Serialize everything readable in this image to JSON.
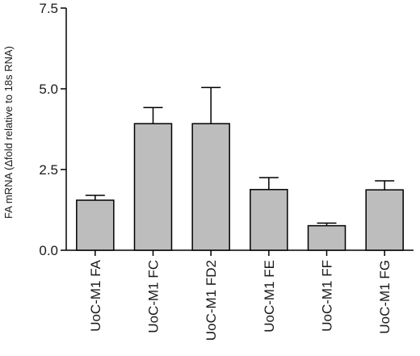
{
  "chart_data": {
    "type": "bar",
    "title": "",
    "xlabel": "",
    "ylabel": "FA mRNA (Δfold relative to 18s RNA)",
    "ylim": [
      0,
      7.5
    ],
    "yticks": [
      0.0,
      2.5,
      5.0,
      7.5
    ],
    "ytick_labels": [
      "0.0",
      "2.5",
      "5.0",
      "7.5"
    ],
    "categories": [
      "UoC-M1 FA",
      "UoC-M1 FC",
      "UoC-M1 FD2",
      "UoC-M1 FE",
      "UoC-M1 FF",
      "UoC-M1 FG"
    ],
    "values": [
      1.55,
      3.92,
      3.92,
      1.88,
      0.76,
      1.87
    ],
    "error_upper": [
      0.15,
      0.5,
      1.12,
      0.37,
      0.08,
      0.28
    ],
    "grid": false,
    "legend": "none",
    "bar_color": "#bdbdbd",
    "edge_color": "#000000"
  }
}
